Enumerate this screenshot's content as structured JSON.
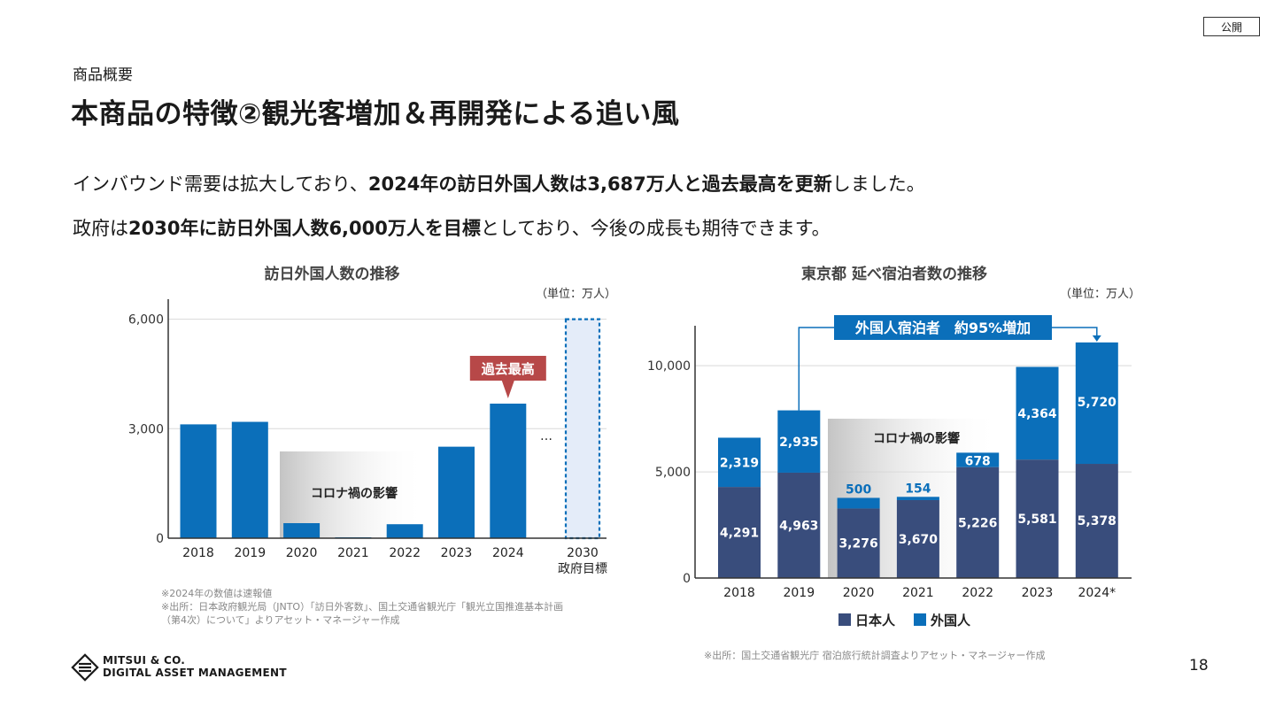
{
  "badge": "公開",
  "section_label": "商品概要",
  "title": "本商品の特徴②観光客増加＆再開発による追い風",
  "line1": {
    "a": "インバウンド需要は拡大しており、",
    "b": "2024年の訪日外国人数は3,687万人と過去最高を更新",
    "c": "しました。"
  },
  "line2": {
    "a": "政府は",
    "b": "2030年に訪日外国人数6,000万人を目標",
    "c": "としており、今後の成長も期待できます。"
  },
  "chart_data": [
    {
      "type": "bar",
      "title": "訪日外国人数の推移",
      "unit": "（単位：万人）",
      "categories": [
        "2018",
        "2019",
        "2020",
        "2021",
        "2022",
        "2023",
        "2024",
        "2030"
      ],
      "category_sub": [
        "",
        "",
        "",
        "",
        "",
        "",
        "",
        "政府目標"
      ],
      "values": [
        3119,
        3188,
        412,
        25,
        383,
        2507,
        3687,
        6000
      ],
      "target_index": 7,
      "ellipsis": "…",
      "yticks": [
        0,
        3000,
        6000
      ],
      "ytick_labels": [
        "0",
        "3,000",
        "6,000"
      ],
      "ylim": [
        0,
        6500
      ],
      "grid": true,
      "annotations": {
        "covid": "コロナ禍の影響",
        "record": "過去最高"
      },
      "colors": {
        "bar": "#0b6fba",
        "target_fill": "#e4ecf9",
        "target_border": "#0b6fba",
        "record": "#b74848"
      }
    },
    {
      "type": "bar",
      "stacked": true,
      "title": "東京都 延べ宿泊者数の推移",
      "unit": "（単位：万人）",
      "categories": [
        "2018",
        "2019",
        "2020",
        "2021",
        "2022",
        "2023",
        "2024*"
      ],
      "series": [
        {
          "name": "日本人",
          "values": [
            4291,
            4963,
            3276,
            3670,
            5226,
            5581,
            5378
          ],
          "color": "#394d7c"
        },
        {
          "name": "外国人",
          "values": [
            2319,
            2935,
            500,
            154,
            678,
            4364,
            5720
          ],
          "color": "#0b6fba"
        }
      ],
      "yticks": [
        0,
        5000,
        10000
      ],
      "ytick_labels": [
        "0",
        "5,000",
        "10,000"
      ],
      "ylim": [
        0,
        11800
      ],
      "grid": true,
      "legend": "bottom",
      "annotations": {
        "covid": "コロナ禍の影響",
        "increase": "外国人宿泊者　約95%増加"
      }
    }
  ],
  "notes1": [
    "※2024年の数値は速報値",
    "※出所：日本政府観光局（JNTO）「訪日外客数」、国土交通省観光庁「観光立国推進基本計画",
    "（第4次）について」よりアセット・マネージャー作成"
  ],
  "note2": "※出所：国土交通省観光庁 宿泊旅行統計調査よりアセット・マネージャー作成",
  "logo": {
    "line1": "MITSUI & CO.",
    "line2": "DIGITAL ASSET MANAGEMENT"
  },
  "page_number": "18"
}
